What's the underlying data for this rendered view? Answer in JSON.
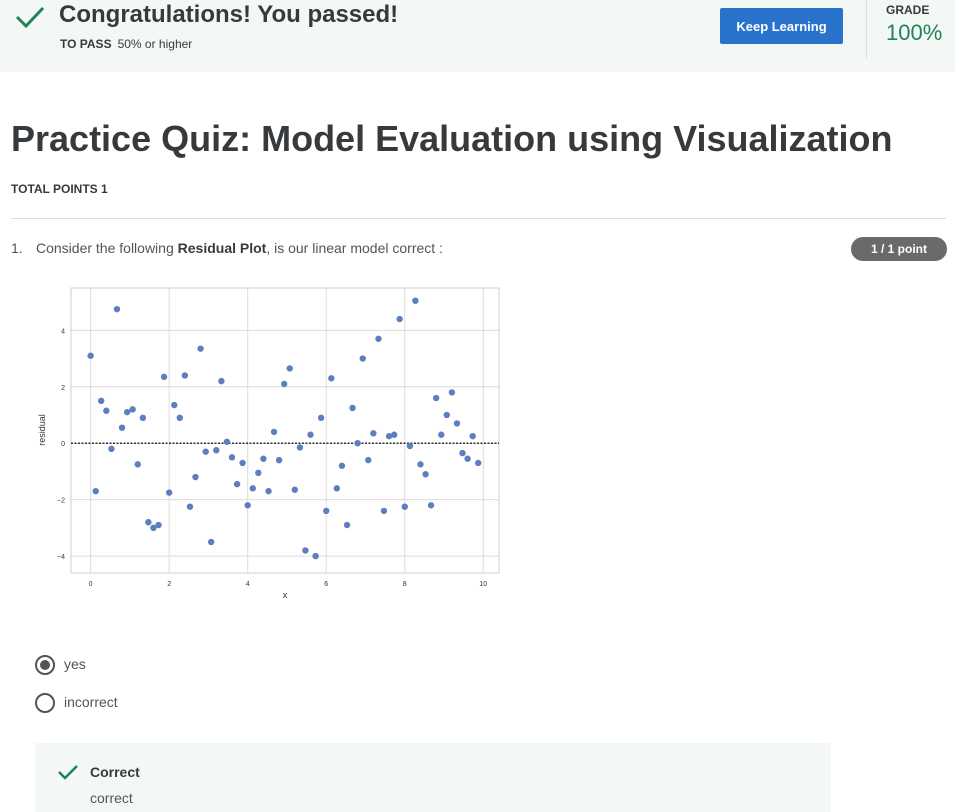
{
  "banner": {
    "headline": "Congratulations! You passed!",
    "to_pass_label": "TO PASS",
    "to_pass_value": "50% or higher",
    "keep_learning_label": "Keep Learning",
    "grade_label": "GRADE",
    "grade_value": "100%",
    "success_color": "#1f8354",
    "button_color": "#2a73cc"
  },
  "quiz": {
    "title": "Practice Quiz: Model Evaluation using Visualization",
    "total_points": "TOTAL POINTS 1"
  },
  "question": {
    "number": "1.",
    "text_before": "Consider the following ",
    "text_bold": "Residual Plot",
    "text_after": ", is our linear model correct :",
    "score": "1 / 1 point",
    "options": [
      {
        "label": "yes",
        "selected": true
      },
      {
        "label": "incorrect",
        "selected": false
      }
    ],
    "feedback_title": "Correct",
    "feedback_text": "correct"
  },
  "chart_data": {
    "type": "scatter",
    "xlabel": "x",
    "ylabel": "residual",
    "xlim": [
      -0.5,
      10.4
    ],
    "ylim": [
      -4.6,
      5.5
    ],
    "xticks": [
      0,
      2,
      4,
      6,
      8,
      10
    ],
    "yticks": [
      -4,
      -2,
      0,
      2,
      4
    ],
    "grid": true,
    "reference_line": 0,
    "point_color": "#5b7fbf",
    "points": [
      [
        0.0,
        3.1
      ],
      [
        0.13,
        -1.7
      ],
      [
        0.27,
        1.5
      ],
      [
        0.4,
        1.15
      ],
      [
        0.53,
        -0.2
      ],
      [
        0.67,
        4.75
      ],
      [
        0.8,
        0.55
      ],
      [
        0.93,
        1.1
      ],
      [
        1.07,
        1.2
      ],
      [
        1.2,
        -0.75
      ],
      [
        1.33,
        0.9
      ],
      [
        1.47,
        -2.8
      ],
      [
        1.6,
        -3.0
      ],
      [
        1.73,
        -2.9
      ],
      [
        1.87,
        2.35
      ],
      [
        2.0,
        -1.75
      ],
      [
        2.13,
        1.35
      ],
      [
        2.27,
        0.9
      ],
      [
        2.4,
        2.4
      ],
      [
        2.53,
        -2.25
      ],
      [
        2.67,
        -1.2
      ],
      [
        2.8,
        3.35
      ],
      [
        2.93,
        -0.3
      ],
      [
        3.07,
        -3.5
      ],
      [
        3.2,
        -0.25
      ],
      [
        3.33,
        2.2
      ],
      [
        3.47,
        0.05
      ],
      [
        3.6,
        -0.5
      ],
      [
        3.73,
        -1.45
      ],
      [
        3.87,
        -0.7
      ],
      [
        4.0,
        -2.2
      ],
      [
        4.13,
        -1.6
      ],
      [
        4.27,
        -1.05
      ],
      [
        4.4,
        -0.55
      ],
      [
        4.53,
        -1.7
      ],
      [
        4.67,
        0.4
      ],
      [
        4.8,
        -0.6
      ],
      [
        4.93,
        2.1
      ],
      [
        5.07,
        2.65
      ],
      [
        5.2,
        -1.65
      ],
      [
        5.33,
        -0.15
      ],
      [
        5.47,
        -3.8
      ],
      [
        5.6,
        0.3
      ],
      [
        5.73,
        -4.0
      ],
      [
        5.87,
        0.9
      ],
      [
        6.0,
        -2.4
      ],
      [
        6.13,
        2.3
      ],
      [
        6.27,
        -1.6
      ],
      [
        6.4,
        -0.8
      ],
      [
        6.53,
        -2.9
      ],
      [
        6.67,
        1.25
      ],
      [
        6.8,
        0.0
      ],
      [
        6.93,
        3.0
      ],
      [
        7.07,
        -0.6
      ],
      [
        7.2,
        0.35
      ],
      [
        7.33,
        3.7
      ],
      [
        7.47,
        -2.4
      ],
      [
        7.6,
        0.25
      ],
      [
        7.73,
        0.3
      ],
      [
        7.87,
        4.4
      ],
      [
        8.0,
        -2.25
      ],
      [
        8.13,
        -0.1
      ],
      [
        8.27,
        5.05
      ],
      [
        8.4,
        -0.75
      ],
      [
        8.53,
        -1.1
      ],
      [
        8.67,
        -2.2
      ],
      [
        8.8,
        1.6
      ],
      [
        8.93,
        0.3
      ],
      [
        9.07,
        1.0
      ],
      [
        9.2,
        1.8
      ],
      [
        9.33,
        0.7
      ],
      [
        9.47,
        -0.35
      ],
      [
        9.6,
        -0.55
      ],
      [
        9.73,
        0.25
      ],
      [
        9.87,
        -0.7
      ]
    ]
  }
}
